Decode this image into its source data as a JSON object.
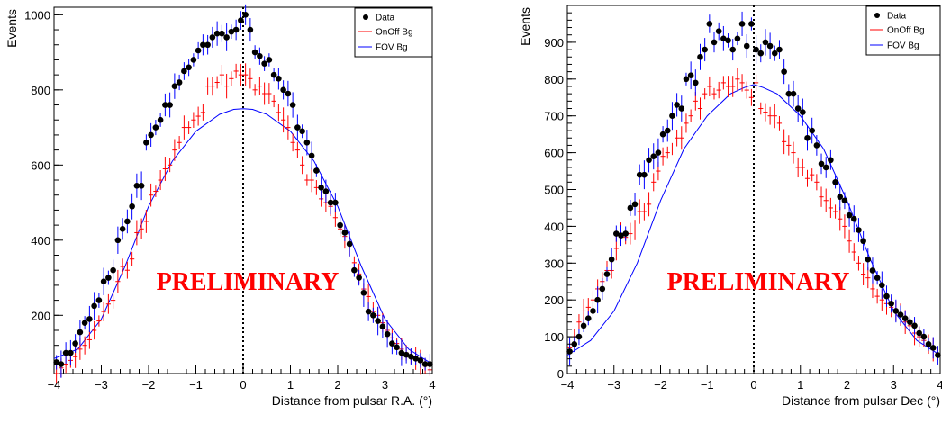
{
  "colors": {
    "data": "#000000",
    "onoff": "#ff0000",
    "fov": "#0000ff"
  },
  "chart_data": [
    {
      "type": "scatter",
      "title": "",
      "xlabel": "Distance from pulsar R.A. (°)",
      "ylabel": "Events",
      "xlim": [
        -4,
        4
      ],
      "ylim": [
        45,
        1020
      ],
      "xticks": [
        -4,
        -3,
        -2,
        -1,
        0,
        1,
        2,
        3,
        4
      ],
      "xtick_labels": [
        "−4",
        "−3",
        "−2",
        "−1",
        "0",
        "1",
        "2",
        "3",
        "4"
      ],
      "yticks": [
        200,
        400,
        600,
        800,
        1000
      ],
      "ytick_labels": [
        "200",
        "400",
        "600",
        "800",
        "1000"
      ],
      "grid": false,
      "legend": "top-right",
      "vline_x": 0,
      "annotation": "PRELIMINARY",
      "series": [
        {
          "name": "Data",
          "kind": "points",
          "x": [
            -3.95,
            -3.85,
            -3.75,
            -3.65,
            -3.55,
            -3.45,
            -3.35,
            -3.25,
            -3.15,
            -3.05,
            -2.95,
            -2.85,
            -2.75,
            -2.65,
            -2.55,
            -2.45,
            -2.35,
            -2.25,
            -2.15,
            -2.05,
            -1.95,
            -1.85,
            -1.75,
            -1.65,
            -1.55,
            -1.45,
            -1.35,
            -1.25,
            -1.15,
            -1.05,
            -0.95,
            -0.85,
            -0.75,
            -0.65,
            -0.55,
            -0.45,
            -0.35,
            -0.25,
            -0.15,
            -0.05,
            0.05,
            0.15,
            0.25,
            0.35,
            0.45,
            0.55,
            0.65,
            0.75,
            0.85,
            0.95,
            1.05,
            1.15,
            1.25,
            1.35,
            1.45,
            1.55,
            1.65,
            1.75,
            1.85,
            1.95,
            2.05,
            2.15,
            2.25,
            2.35,
            2.45,
            2.55,
            2.65,
            2.75,
            2.85,
            2.95,
            3.05,
            3.15,
            3.25,
            3.35,
            3.45,
            3.55,
            3.65,
            3.75,
            3.85,
            3.95
          ],
          "y": [
            75,
            70,
            100,
            100,
            125,
            155,
            180,
            190,
            225,
            240,
            290,
            300,
            320,
            400,
            430,
            450,
            490,
            545,
            545,
            660,
            680,
            700,
            720,
            760,
            760,
            810,
            820,
            850,
            860,
            880,
            905,
            920,
            920,
            940,
            950,
            950,
            940,
            955,
            960,
            985,
            1000,
            960,
            900,
            890,
            870,
            880,
            840,
            830,
            800,
            790,
            760,
            700,
            690,
            660,
            625,
            585,
            540,
            530,
            500,
            500,
            440,
            420,
            390,
            320,
            300,
            260,
            210,
            200,
            185,
            170,
            150,
            125,
            115,
            100,
            95,
            90,
            85,
            80,
            70,
            70
          ]
        },
        {
          "name": "OnOff Bg",
          "kind": "crosses",
          "x": [
            -3.95,
            -3.85,
            -3.75,
            -3.65,
            -3.55,
            -3.45,
            -3.35,
            -3.25,
            -3.15,
            -3.05,
            -2.95,
            -2.85,
            -2.75,
            -2.65,
            -2.55,
            -2.45,
            -2.35,
            -2.25,
            -2.15,
            -2.05,
            -1.95,
            -1.85,
            -1.75,
            -1.65,
            -1.55,
            -1.45,
            -1.35,
            -1.25,
            -1.15,
            -1.05,
            -0.95,
            -0.85,
            -0.75,
            -0.65,
            -0.55,
            -0.45,
            -0.35,
            -0.25,
            -0.15,
            -0.05,
            0.05,
            0.15,
            0.25,
            0.35,
            0.45,
            0.55,
            0.65,
            0.75,
            0.85,
            0.95,
            1.05,
            1.15,
            1.25,
            1.35,
            1.45,
            1.55,
            1.65,
            1.75,
            1.85,
            1.95,
            2.05,
            2.15,
            2.25,
            2.35,
            2.45,
            2.55,
            2.65,
            2.75,
            2.85,
            2.95,
            3.05,
            3.15,
            3.25,
            3.35,
            3.45,
            3.55,
            3.65,
            3.75,
            3.85,
            3.95
          ],
          "y": [
            45,
            60,
            70,
            80,
            90,
            110,
            120,
            135,
            160,
            185,
            210,
            230,
            240,
            290,
            330,
            320,
            350,
            420,
            430,
            450,
            520,
            530,
            560,
            590,
            600,
            640,
            660,
            700,
            700,
            720,
            730,
            740,
            810,
            810,
            820,
            840,
            810,
            830,
            850,
            840,
            840,
            830,
            800,
            810,
            790,
            790,
            770,
            740,
            720,
            700,
            660,
            640,
            600,
            560,
            560,
            540,
            510,
            500,
            490,
            460,
            430,
            410,
            390,
            340,
            310,
            270,
            250,
            210,
            200,
            180,
            160,
            140,
            125,
            110,
            100,
            90,
            85,
            75,
            65,
            55
          ]
        },
        {
          "name": "FOV Bg",
          "kind": "line",
          "x": [
            -4,
            -3.5,
            -3,
            -2.5,
            -2,
            -1.5,
            -1,
            -0.5,
            -0.2,
            0,
            0.2,
            0.5,
            1,
            1.5,
            2,
            2.5,
            3,
            3.5,
            4
          ],
          "y": [
            85,
            110,
            190,
            330,
            490,
            610,
            690,
            735,
            748,
            750,
            748,
            735,
            690,
            610,
            490,
            330,
            190,
            110,
            70
          ]
        }
      ]
    },
    {
      "type": "scatter",
      "title": "",
      "xlabel": "Distance from pulsar Dec (°)",
      "ylabel": "Events",
      "xlim": [
        -4,
        4
      ],
      "ylim": [
        0,
        1000
      ],
      "xticks": [
        -4,
        -3,
        -2,
        -1,
        0,
        1,
        2,
        3,
        4
      ],
      "xtick_labels": [
        "−4",
        "−3",
        "−2",
        "−1",
        "0",
        "1",
        "2",
        "3",
        "4"
      ],
      "yticks": [
        0,
        100,
        200,
        300,
        400,
        500,
        600,
        700,
        800,
        900
      ],
      "ytick_labels": [
        "0",
        "100",
        "200",
        "300",
        "400",
        "500",
        "600",
        "700",
        "800",
        "900"
      ],
      "grid": false,
      "legend": "top-right",
      "vline_x": 0,
      "annotation": "PRELIMINARY",
      "series": [
        {
          "name": "Data",
          "kind": "points",
          "x": [
            -3.95,
            -3.85,
            -3.75,
            -3.65,
            -3.55,
            -3.45,
            -3.35,
            -3.25,
            -3.15,
            -3.05,
            -2.95,
            -2.85,
            -2.75,
            -2.65,
            -2.55,
            -2.45,
            -2.35,
            -2.25,
            -2.15,
            -2.05,
            -1.95,
            -1.85,
            -1.75,
            -1.65,
            -1.55,
            -1.45,
            -1.35,
            -1.25,
            -1.15,
            -1.05,
            -0.95,
            -0.85,
            -0.75,
            -0.65,
            -0.55,
            -0.45,
            -0.35,
            -0.25,
            -0.15,
            -0.05,
            0.05,
            0.15,
            0.25,
            0.35,
            0.45,
            0.55,
            0.65,
            0.75,
            0.85,
            0.95,
            1.05,
            1.15,
            1.25,
            1.35,
            1.45,
            1.55,
            1.65,
            1.75,
            1.85,
            1.95,
            2.05,
            2.15,
            2.25,
            2.35,
            2.45,
            2.55,
            2.65,
            2.75,
            2.85,
            2.95,
            3.05,
            3.15,
            3.25,
            3.35,
            3.45,
            3.55,
            3.65,
            3.75,
            3.85,
            3.95
          ],
          "y": [
            60,
            80,
            100,
            130,
            150,
            170,
            200,
            230,
            270,
            310,
            380,
            375,
            380,
            450,
            460,
            540,
            540,
            580,
            590,
            600,
            650,
            660,
            700,
            730,
            720,
            800,
            810,
            790,
            860,
            880,
            950,
            900,
            930,
            910,
            905,
            880,
            910,
            950,
            890,
            950,
            880,
            870,
            900,
            890,
            870,
            880,
            820,
            760,
            760,
            720,
            710,
            640,
            660,
            620,
            570,
            560,
            580,
            520,
            480,
            470,
            430,
            420,
            390,
            360,
            310,
            280,
            260,
            240,
            210,
            190,
            170,
            160,
            150,
            140,
            130,
            110,
            100,
            80,
            70,
            50
          ]
        },
        {
          "name": "OnOff Bg",
          "kind": "crosses",
          "x": [
            -3.95,
            -3.85,
            -3.75,
            -3.65,
            -3.55,
            -3.45,
            -3.35,
            -3.25,
            -3.15,
            -3.05,
            -2.95,
            -2.85,
            -2.75,
            -2.65,
            -2.55,
            -2.45,
            -2.35,
            -2.25,
            -2.15,
            -2.05,
            -1.95,
            -1.85,
            -1.75,
            -1.65,
            -1.55,
            -1.45,
            -1.35,
            -1.25,
            -1.15,
            -1.05,
            -0.95,
            -0.85,
            -0.75,
            -0.65,
            -0.55,
            -0.45,
            -0.35,
            -0.25,
            -0.15,
            -0.05,
            0.05,
            0.15,
            0.25,
            0.35,
            0.45,
            0.55,
            0.65,
            0.75,
            0.85,
            0.95,
            1.05,
            1.15,
            1.25,
            1.35,
            1.45,
            1.55,
            1.65,
            1.75,
            1.85,
            1.95,
            2.05,
            2.15,
            2.25,
            2.35,
            2.45,
            2.55,
            2.65,
            2.75,
            2.85,
            2.95,
            3.05,
            3.15,
            3.25,
            3.35,
            3.45,
            3.55,
            3.65,
            3.75,
            3.85,
            3.95
          ],
          "y": [
            70,
            100,
            140,
            170,
            180,
            200,
            230,
            250,
            280,
            280,
            340,
            380,
            370,
            380,
            390,
            440,
            440,
            460,
            520,
            550,
            590,
            600,
            610,
            640,
            640,
            680,
            700,
            740,
            720,
            760,
            780,
            760,
            770,
            790,
            780,
            780,
            800,
            790,
            770,
            750,
            790,
            720,
            710,
            700,
            700,
            680,
            630,
            620,
            600,
            560,
            560,
            530,
            540,
            520,
            480,
            470,
            450,
            440,
            420,
            400,
            360,
            330,
            300,
            270,
            260,
            230,
            210,
            200,
            190,
            180,
            170,
            160,
            140,
            130,
            110,
            100,
            90,
            80,
            65,
            55
          ]
        },
        {
          "name": "FOV Bg",
          "kind": "line",
          "x": [
            -4,
            -3.5,
            -3,
            -2.5,
            -2,
            -1.5,
            -1,
            -0.5,
            -0.2,
            0,
            0.2,
            0.5,
            1,
            1.5,
            2,
            2.5,
            3,
            3.5,
            4
          ],
          "y": [
            50,
            90,
            170,
            300,
            470,
            610,
            700,
            760,
            777,
            785,
            777,
            760,
            700,
            610,
            470,
            310,
            170,
            90,
            50
          ]
        }
      ]
    }
  ]
}
